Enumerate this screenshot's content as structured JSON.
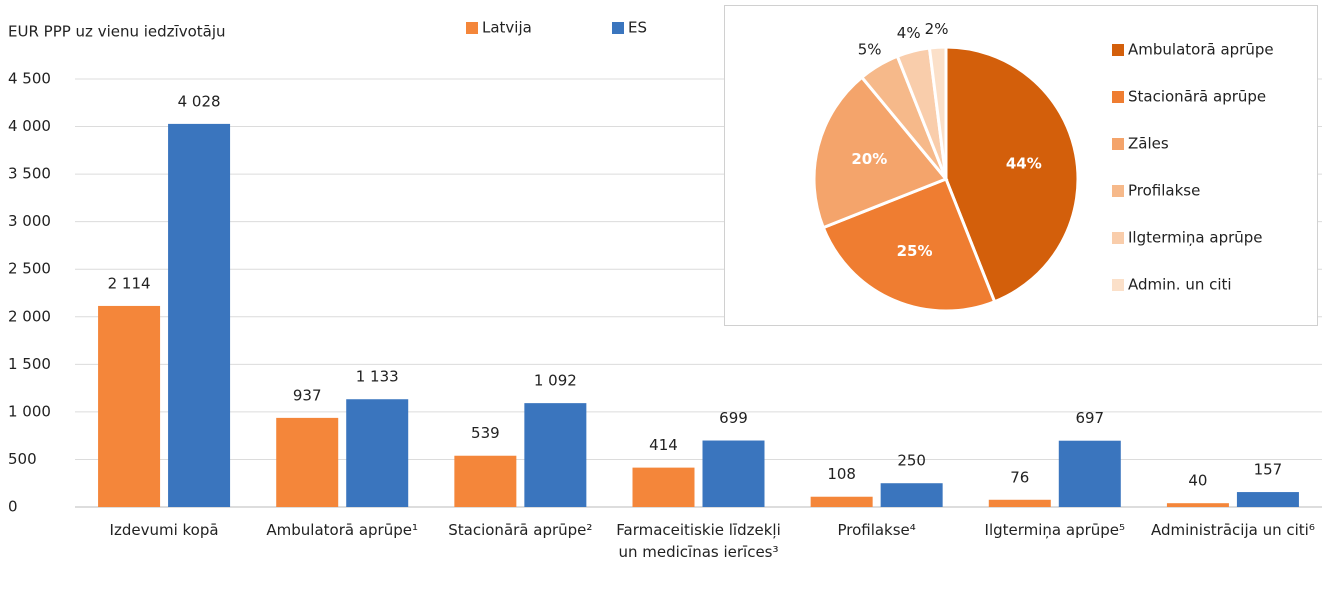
{
  "chart_data": [
    {
      "type": "bar",
      "y_label": "EUR PPP uz vienu iedzīvotāju",
      "categories": [
        "Izdevumi kopā",
        "Ambulatorā aprūpe¹",
        "Stacionārā aprūpe²",
        "Farmaceitiskie līdzekļi un medicīnas ierīces³",
        "Profilakse⁴",
        "Ilgtermiņa aprūpe⁵",
        "Administrācija un citi⁶"
      ],
      "series": [
        {
          "name": "Latvija",
          "color": "#f4863a",
          "values": [
            2114,
            937,
            539,
            414,
            108,
            76,
            40
          ],
          "value_labels": [
            "2 114",
            "937",
            "539",
            "414",
            "108",
            "76",
            "40"
          ]
        },
        {
          "name": "ES",
          "color": "#3a75be",
          "values": [
            4028,
            1133,
            1092,
            699,
            250,
            697,
            157
          ],
          "value_labels": [
            "4 028",
            "1 133",
            "1 092",
            "699",
            "250",
            "697",
            "157"
          ]
        }
      ],
      "ylim": [
        0,
        4500
      ],
      "yticks": [
        0,
        500,
        {
          "value": 1000,
          "label": "1 000"
        },
        {
          "value": 1500,
          "label": "1 500"
        },
        {
          "value": 2000,
          "label": "2 000"
        },
        {
          "value": 2500,
          "label": "2 500"
        },
        {
          "value": 3000,
          "label": "3 000"
        },
        {
          "value": 3500,
          "label": "3 500"
        },
        {
          "value": 4000,
          "label": "4 000"
        },
        {
          "value": 4500,
          "label": "4 500"
        }
      ],
      "grid": true
    },
    {
      "type": "pie",
      "categories": [
        "Ambulatorā aprūpe",
        "Stacionārā aprūpe",
        "Zāles",
        "Profilakse",
        "Ilgtermiņa aprūpe",
        "Admin. un citi"
      ],
      "values": [
        44,
        25,
        20,
        5,
        4,
        2
      ],
      "value_labels": [
        "44%",
        "25%",
        "20%",
        "5%",
        "4%",
        "2%"
      ],
      "colors": [
        "#d35f0b",
        "#ef7d31",
        "#f4a46b",
        "#f6b98a",
        "#f9cdab",
        "#fbe0c9"
      ]
    }
  ]
}
